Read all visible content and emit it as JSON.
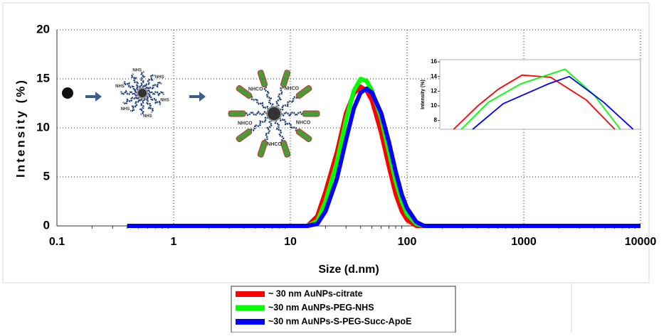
{
  "chart_data": [
    {
      "type": "line",
      "xlabel": "Size (d.nm)",
      "ylabel": "Intensity (%)",
      "log_x": true,
      "grid": true,
      "legend": "bottom",
      "xlim": [
        0.1,
        10000
      ],
      "xticks": [
        0.1,
        1,
        10,
        100,
        1000,
        10000
      ],
      "ylim": [
        0,
        20
      ],
      "yticks": [
        0,
        5,
        10,
        15,
        20
      ],
      "x": [
        0.4,
        14,
        17,
        20,
        25,
        30,
        35,
        40,
        45,
        50,
        60,
        70,
        80,
        90,
        100,
        120,
        140,
        10000
      ],
      "series": [
        {
          "name": "~ 30 nm AuNPs-citrate",
          "color": "#ff0000",
          "values": [
            0,
            0,
            1.0,
            3.5,
            7.5,
            11.5,
            13.5,
            14.2,
            13.8,
            12.8,
            9.5,
            6.0,
            3.2,
            1.5,
            0.6,
            0,
            0,
            0
          ]
        },
        {
          "name": "~30 nm AuNPs-PEG-NHS",
          "color": "#00ff00",
          "values": [
            0,
            0,
            0.5,
            2.5,
            6.5,
            10.8,
            13.8,
            15.0,
            14.8,
            13.8,
            11.0,
            7.5,
            4.5,
            2.5,
            1.2,
            0.2,
            0,
            0
          ]
        },
        {
          "name": "~30 nm AuNPs-S-PEG-Succ-ApoE",
          "color": "#0000ff",
          "values": [
            0,
            0,
            0.2,
            1.5,
            4.8,
            8.8,
            12.0,
            13.6,
            14.0,
            13.6,
            11.5,
            8.5,
            5.5,
            3.2,
            1.8,
            0.4,
            0,
            0
          ]
        }
      ]
    },
    {
      "type": "line",
      "ylabel": "Intensity (%)",
      "log_x": true,
      "grid": false,
      "xlim": [
        20,
        80
      ],
      "ylim": [
        6.8,
        16.3
      ],
      "yticks": [
        8,
        10,
        12,
        14,
        16
      ],
      "series": [
        {
          "color": "#ff0000",
          "x": [
            22,
            26,
            30,
            35.3,
            43,
            55,
            67
          ],
          "values": [
            6.8,
            10,
            12.3,
            14.2,
            13.9,
            10.8,
            6.8
          ]
        },
        {
          "color": "#00ff00",
          "x": [
            23.2,
            28,
            35,
            47.5,
            58,
            69.6
          ],
          "values": [
            6.8,
            10.5,
            13,
            15,
            11.5,
            6.8
          ]
        },
        {
          "color": "#0000ff",
          "x": [
            25.1,
            31,
            42.4,
            48.9,
            62,
            76
          ],
          "values": [
            6.8,
            10.3,
            13,
            14,
            10.5,
            6.8
          ]
        }
      ]
    }
  ],
  "illustration": {
    "labels": [
      "NHS",
      "NHCO"
    ]
  }
}
